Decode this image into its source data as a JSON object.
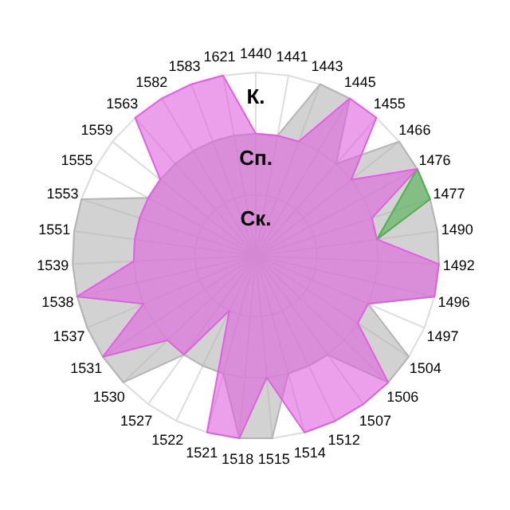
{
  "chart_data": {
    "type": "radar",
    "categories": [
      "1440",
      "1441",
      "1443",
      "1445",
      "1455",
      "1466",
      "1476",
      "1477",
      "1490",
      "1492",
      "1496",
      "1497",
      "1504",
      "1506",
      "1507",
      "1512",
      "1514",
      "1515",
      "1518",
      "1521",
      "1522",
      "1527",
      "1530",
      "1531",
      "1537",
      "1538",
      "1539",
      "1551",
      "1553",
      "1555",
      "1559",
      "1563",
      "1582",
      "1583",
      "1621"
    ],
    "ylim": [
      0,
      3
    ],
    "yticks": [
      {
        "value": 1,
        "label": "Ск."
      },
      {
        "value": 2,
        "label": "Сп."
      },
      {
        "value": 3,
        "label": "К."
      }
    ],
    "grid": true,
    "series": [
      {
        "color": "#b4b4b4",
        "values": [
          2,
          2,
          3,
          3,
          2,
          3,
          3,
          3,
          3,
          3,
          3,
          2,
          3,
          3,
          2,
          2,
          2,
          3,
          3,
          2,
          2,
          2,
          3,
          3,
          3,
          3,
          3,
          3,
          3,
          2,
          2,
          2,
          2,
          2,
          2
        ]
      },
      {
        "color": "#50b050",
        "values": [
          null,
          null,
          null,
          null,
          null,
          null,
          3,
          3,
          2,
          null,
          null,
          null,
          null,
          null,
          null,
          null,
          null,
          null,
          null,
          null,
          null,
          null,
          null,
          null,
          null,
          null,
          null,
          null,
          null,
          null,
          null,
          null,
          null,
          null,
          null
        ]
      },
      {
        "color": "#e060e0",
        "values": [
          2,
          2,
          2,
          3,
          3,
          2,
          3,
          2,
          2,
          3,
          3,
          2,
          2,
          3,
          3,
          3,
          3,
          2,
          3,
          3,
          1,
          2,
          2,
          3,
          2,
          3,
          2,
          2,
          2,
          2,
          2,
          3,
          3,
          3,
          3
        ]
      }
    ]
  }
}
